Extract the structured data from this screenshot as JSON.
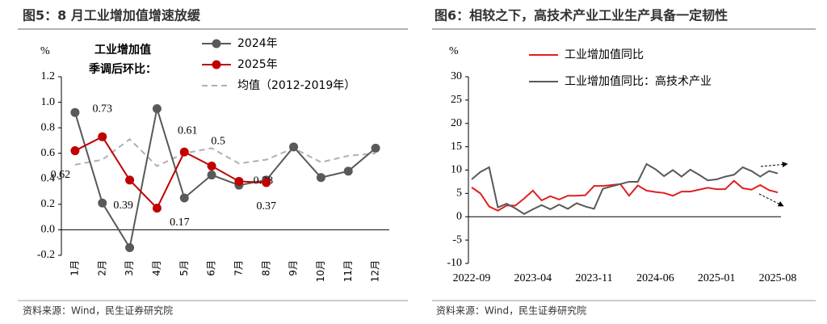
{
  "chart_data": [
    {
      "type": "line",
      "title": "图5：8 月工业增加值增速放缓",
      "y_unit": "%",
      "annotation": [
        "工业增加值",
        "季调后环比："
      ],
      "categories": [
        "1月",
        "2月",
        "3月",
        "4月",
        "5月",
        "6月",
        "7月",
        "8月",
        "9月",
        "10月",
        "11月",
        "12月"
      ],
      "series": [
        {
          "name": "2024年",
          "color": "#595959",
          "marker": true,
          "values": [
            0.92,
            0.21,
            -0.14,
            0.95,
            0.25,
            0.43,
            0.35,
            0.39,
            0.65,
            0.41,
            0.46,
            0.64
          ]
        },
        {
          "name": "2025年",
          "color": "#c00000",
          "marker": true,
          "show_labels": true,
          "values": [
            0.62,
            0.73,
            0.39,
            0.17,
            0.61,
            0.5,
            0.38,
            0.37,
            null,
            null,
            null,
            null
          ]
        },
        {
          "name": "均值（2012-2019年）",
          "color": "#b0b0b0",
          "dashed": true,
          "values": [
            0.51,
            0.55,
            0.71,
            0.5,
            0.6,
            0.64,
            0.52,
            0.55,
            0.64,
            0.53,
            0.58,
            0.6
          ]
        }
      ],
      "ylim": [
        -0.2,
        1.2
      ],
      "yticks": [
        -0.2,
        {
          "value": 0,
          "label": "0.0"
        },
        0.2,
        0.4,
        0.6,
        0.8,
        {
          "value": 1,
          "label": "1.0"
        },
        1.2
      ],
      "source": "资料来源：Wind，民生证券研究院"
    },
    {
      "type": "line",
      "title": "图6：相较之下，高技术产业工业生产具备一定韧性",
      "y_unit": "%",
      "categories": [
        "2022-09",
        null,
        null,
        null,
        null,
        null,
        null,
        "2023-04",
        null,
        null,
        null,
        null,
        null,
        null,
        "2023-11",
        null,
        null,
        null,
        null,
        null,
        null,
        "2024-06",
        null,
        null,
        null,
        null,
        null,
        null,
        "2025-01",
        null,
        null,
        null,
        null,
        null,
        null,
        "2025-08"
      ],
      "series": [
        {
          "name": "工业增加值同比",
          "color": "#e0201f",
          "values": [
            6.3,
            5.0,
            2.2,
            1.3,
            2.4,
            2.4,
            3.9,
            5.6,
            3.5,
            4.4,
            3.7,
            4.5,
            4.5,
            4.6,
            6.6,
            6.6,
            6.8,
            7.0,
            4.5,
            6.7,
            5.6,
            5.3,
            5.1,
            4.5,
            5.4,
            5.4,
            5.8,
            6.2,
            5.9,
            5.9,
            7.7,
            6.1,
            5.8,
            6.8,
            5.7,
            5.2
          ]
        },
        {
          "name": "工业增加值同比：高技术产业",
          "color": "#595959",
          "values": [
            8.0,
            9.6,
            10.6,
            2.0,
            2.8,
            1.8,
            0.6,
            1.6,
            2.5,
            1.6,
            2.6,
            1.7,
            2.9,
            2.2,
            1.7,
            6.0,
            6.5,
            7.0,
            7.5,
            7.5,
            11.3,
            10.2,
            8.7,
            10.0,
            8.6,
            10.1,
            9.0,
            7.8,
            8.0,
            8.6,
            9.0,
            10.6,
            9.8,
            8.6,
            9.8,
            9.3
          ]
        }
      ],
      "ylim": [
        -10,
        30
      ],
      "yticks": [
        -10,
        -5,
        0,
        5,
        10,
        15,
        20,
        25,
        30
      ],
      "source": "资料来源：Wind，民生证券研究院"
    }
  ]
}
